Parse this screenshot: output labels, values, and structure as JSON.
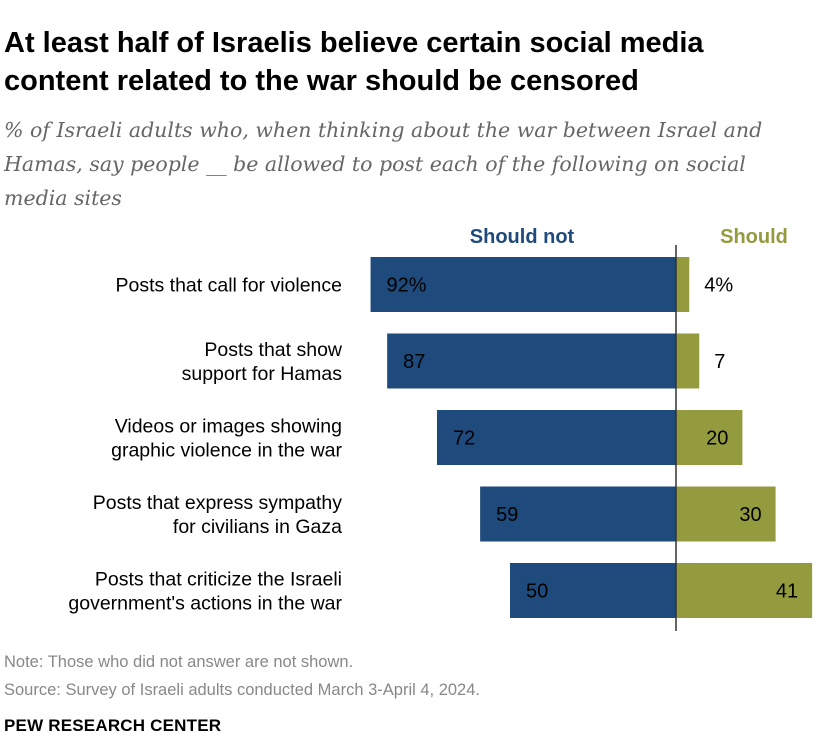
{
  "title": "At least half of Israelis believe certain social media content related to the war should be censored",
  "subtitle": "% of Israeli adults who, when thinking about the war between Israel and Hamas, say people __ be allowed to post each of the following on social media sites",
  "note": "Note: Those who did not answer are not shown.",
  "source": "Source: Survey of Israeli adults conducted March 3-April 4, 2024.",
  "brand": "PEW RESEARCH CENTER",
  "colors": {
    "should_not": "#1f4a7c",
    "should": "#949b3e",
    "axis": "#333333"
  },
  "chart_data": {
    "type": "bar",
    "orientation": "horizontal-diverging",
    "categories": [
      [
        "Posts that call for violence"
      ],
      [
        "Posts that show",
        "support for Hamas"
      ],
      [
        "Videos or images showing",
        "graphic violence in the war"
      ],
      [
        "Posts that express sympathy",
        "for civilians in Gaza"
      ],
      [
        "Posts that criticize the Israeli",
        "government's actions in the war"
      ]
    ],
    "series": [
      {
        "name": "Should not",
        "values": [
          92,
          87,
          72,
          59,
          50
        ],
        "labels": [
          "92%",
          "87",
          "72",
          "59",
          "50"
        ]
      },
      {
        "name": "Should",
        "values": [
          4,
          7,
          20,
          30,
          41
        ],
        "labels": [
          "4%",
          "7",
          "20",
          "30",
          "41"
        ]
      }
    ],
    "unit": "%"
  }
}
